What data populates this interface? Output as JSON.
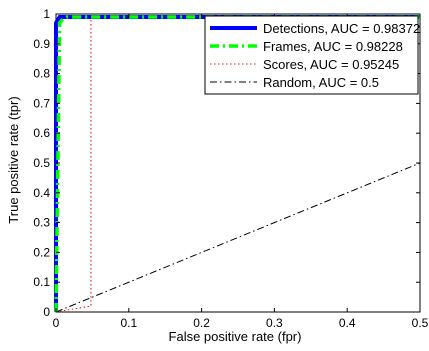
{
  "chart_data": {
    "type": "line",
    "title": "",
    "xlabel": "False positive rate (fpr)",
    "ylabel": "True positive rate (tpr)",
    "xlim": [
      0,
      0.5
    ],
    "ylim": [
      0,
      1
    ],
    "xticks": [
      0,
      0.1,
      0.2,
      0.3,
      0.4,
      0.5
    ],
    "xtick_labels": [
      "0",
      "0.1",
      "0.2",
      "0.3",
      "0.4",
      "0.5"
    ],
    "yticks": [
      0,
      0.1,
      0.2,
      0.3,
      0.4,
      0.5,
      0.6,
      0.7,
      0.8,
      0.9,
      1
    ],
    "ytick_labels": [
      "0",
      "0.1",
      "0.2",
      "0.3",
      "0.4",
      "0.5",
      "0.6",
      "0.7",
      "0.8",
      "0.9",
      "1"
    ],
    "grid": false,
    "legend_position": "top-right",
    "series": [
      {
        "name": "Detections, AUC = 0.98372",
        "color": "#0000ff",
        "style": "solid",
        "x": [
          0,
          0.0,
          0.005,
          0.012,
          0.5
        ],
        "y": [
          0,
          0.97,
          0.99,
          0.99,
          0.99
        ]
      },
      {
        "name": "Frames, AUC = 0.98228",
        "color": "#00ff00",
        "style": "dash-dot",
        "x": [
          0,
          0.005,
          0.01,
          0.015,
          0.5
        ],
        "y": [
          0,
          0.97,
          0.985,
          0.99,
          0.99
        ]
      },
      {
        "name": "Scores, AUC = 0.95245",
        "color": "#ff0000",
        "style": "dotted",
        "x": [
          0,
          0.048,
          0.048,
          0.5
        ],
        "y": [
          0,
          0.02,
          0.99,
          0.99
        ]
      },
      {
        "name": "Random, AUC = 0.5",
        "color": "#000000",
        "style": "dash-dot-thin",
        "x": [
          0,
          0.5
        ],
        "y": [
          0,
          0.5
        ]
      }
    ]
  }
}
